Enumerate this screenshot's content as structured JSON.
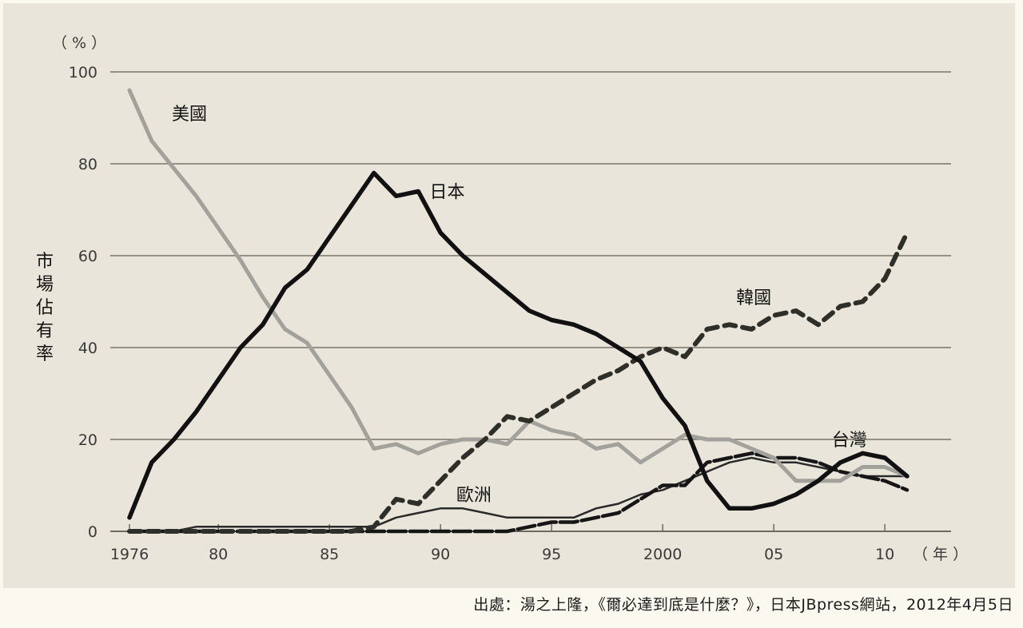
{
  "chart_data": {
    "type": "line",
    "title": "",
    "xlabel": "（年）",
    "ylabel": "市場佔有率",
    "yunit": "（%）",
    "ylim": [
      0,
      100
    ],
    "xlim": [
      1976,
      2011
    ],
    "grid": true,
    "yticks": [
      0,
      20,
      40,
      60,
      80,
      100
    ],
    "xticks": [
      {
        "value": 1976,
        "label": "1976"
      },
      {
        "value": 1980,
        "label": "80"
      },
      {
        "value": 1985,
        "label": "85"
      },
      {
        "value": 1990,
        "label": "90"
      },
      {
        "value": 1995,
        "label": "95"
      },
      {
        "value": 2000,
        "label": "2000"
      },
      {
        "value": 2005,
        "label": "05"
      },
      {
        "value": 2010,
        "label": "10"
      }
    ],
    "x": [
      1976,
      1977,
      1978,
      1979,
      1980,
      1981,
      1982,
      1983,
      1984,
      1985,
      1986,
      1987,
      1988,
      1989,
      1990,
      1991,
      1992,
      1993,
      1994,
      1995,
      1996,
      1997,
      1998,
      1999,
      2000,
      2001,
      2002,
      2003,
      2004,
      2005,
      2006,
      2007,
      2008,
      2009,
      2010,
      2011
    ],
    "series": [
      {
        "name": "美國",
        "style": "solid-gray",
        "color": "#a3a19b",
        "values": [
          96,
          85,
          79,
          73,
          66,
          59,
          51,
          44,
          41,
          34,
          27,
          18,
          19,
          17,
          19,
          20,
          20,
          19,
          24,
          22,
          21,
          18,
          19,
          15,
          18,
          21,
          20,
          20,
          18,
          16,
          11,
          11,
          11,
          14,
          14,
          12
        ]
      },
      {
        "name": "日本",
        "style": "solid-black-thick",
        "color": "#111111",
        "values": [
          3,
          15,
          20,
          26,
          33,
          40,
          45,
          53,
          57,
          64,
          71,
          78,
          73,
          74,
          65,
          60,
          56,
          52,
          48,
          46,
          45,
          43,
          40,
          37,
          29,
          23,
          11,
          5,
          5,
          6,
          8,
          11,
          15,
          17,
          16,
          12
        ]
      },
      {
        "name": "韓國",
        "style": "dashed-thick",
        "color": "#2f2f2a",
        "values": [
          0,
          0,
          0,
          0,
          0,
          0,
          0,
          0,
          0,
          0,
          0,
          1,
          7,
          6,
          11,
          16,
          20,
          25,
          24,
          27,
          30,
          33,
          35,
          38,
          40,
          38,
          44,
          45,
          44,
          47,
          48,
          45,
          49,
          50,
          55,
          65
        ]
      },
      {
        "name": "台灣",
        "style": "dashed-thin",
        "color": "#161616",
        "values": [
          0,
          0,
          0,
          0,
          0,
          0,
          0,
          0,
          0,
          0,
          0,
          0,
          0,
          0,
          0,
          0,
          0,
          0,
          1,
          2,
          2,
          3,
          4,
          7,
          10,
          10,
          15,
          16,
          17,
          16,
          16,
          15,
          13,
          12,
          11,
          9
        ]
      },
      {
        "name": "歐洲",
        "style": "solid-thin",
        "color": "#2a2a2a",
        "values": [
          0,
          0,
          0,
          1,
          1,
          1,
          1,
          1,
          1,
          1,
          1,
          1,
          3,
          4,
          5,
          5,
          4,
          3,
          3,
          3,
          3,
          5,
          6,
          8,
          9,
          11,
          13,
          15,
          16,
          15,
          15,
          14,
          13,
          12,
          12,
          12
        ]
      }
    ],
    "annotations": [
      {
        "text": "美國",
        "x": 1978.7,
        "y": 91
      },
      {
        "text": "日本",
        "x": 1990.3,
        "y": 74
      },
      {
        "text": "韓國",
        "x": 2004.1,
        "y": 51
      },
      {
        "text": "台灣",
        "x": 2008.4,
        "y": 20
      },
      {
        "text": "歐洲",
        "x": 1991.5,
        "y": 8
      }
    ]
  },
  "labels": {
    "y_unit": "（ % ）",
    "y_axis_title": [
      "市",
      "場",
      "佔",
      "有",
      "率"
    ],
    "x_unit": "（ 年 ）"
  },
  "caption": "出處：湯之上隆，《爾必達到底是什麼？》，日本JBpress網站，2012年4月5日"
}
